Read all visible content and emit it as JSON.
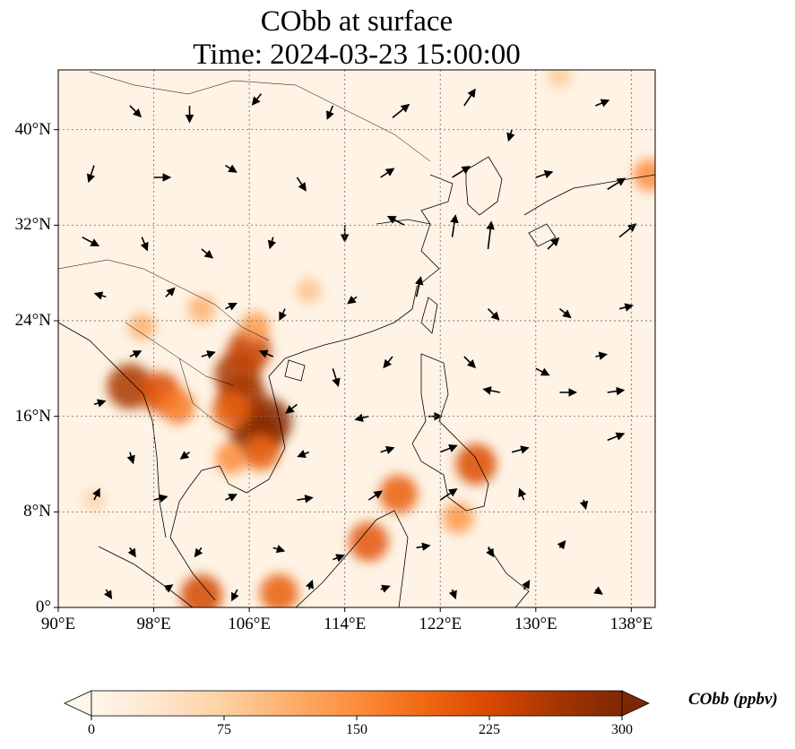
{
  "title": {
    "line1": "CObb at surface",
    "line2": "Time: 2024-03-23 15:00:00"
  },
  "map": {
    "lon_range": [
      90,
      140
    ],
    "lat_range": [
      0,
      45
    ],
    "x_ticks": [
      {
        "lon": 90,
        "label": "90°E"
      },
      {
        "lon": 98,
        "label": "98°E"
      },
      {
        "lon": 106,
        "label": "106°E"
      },
      {
        "lon": 114,
        "label": "114°E"
      },
      {
        "lon": 122,
        "label": "122°E"
      },
      {
        "lon": 130,
        "label": "130°E"
      },
      {
        "lon": 138,
        "label": "138°E"
      }
    ],
    "y_ticks": [
      {
        "lat": 0,
        "label": "0°"
      },
      {
        "lat": 8,
        "label": "8°N"
      },
      {
        "lat": 16,
        "label": "16°N"
      },
      {
        "lat": 24,
        "label": "24°N"
      },
      {
        "lat": 32,
        "label": "32°N"
      },
      {
        "lat": 40,
        "label": "40°N"
      }
    ],
    "gridlines": true,
    "background_color": "#fef3e4",
    "hotspots": [
      {
        "lon": 106.5,
        "lat": 14.5,
        "value": 300
      },
      {
        "lon": 107.5,
        "lat": 15.5,
        "value": 290
      },
      {
        "lon": 105.5,
        "lat": 17.5,
        "value": 270
      },
      {
        "lon": 105.0,
        "lat": 19.5,
        "value": 260
      },
      {
        "lon": 106.0,
        "lat": 21.5,
        "value": 240
      },
      {
        "lon": 96.0,
        "lat": 18.5,
        "value": 260
      },
      {
        "lon": 98.5,
        "lat": 18.0,
        "value": 220
      },
      {
        "lon": 100.0,
        "lat": 16.8,
        "value": 170
      },
      {
        "lon": 104.5,
        "lat": 16.5,
        "value": 200
      },
      {
        "lon": 107.0,
        "lat": 13.0,
        "value": 190
      },
      {
        "lon": 104.5,
        "lat": 12.5,
        "value": 150
      },
      {
        "lon": 125.0,
        "lat": 12.0,
        "value": 220
      },
      {
        "lon": 118.5,
        "lat": 9.5,
        "value": 200
      },
      {
        "lon": 116.0,
        "lat": 5.5,
        "value": 210
      },
      {
        "lon": 102.0,
        "lat": 1.0,
        "value": 230
      },
      {
        "lon": 108.5,
        "lat": 1.2,
        "value": 200
      },
      {
        "lon": 106.5,
        "lat": 23.5,
        "value": 130
      },
      {
        "lon": 102.0,
        "lat": 25.0,
        "value": 110
      },
      {
        "lon": 111.0,
        "lat": 26.5,
        "value": 90
      },
      {
        "lon": 97.0,
        "lat": 23.5,
        "value": 110
      },
      {
        "lon": 93.0,
        "lat": 9.0,
        "value": 70
      },
      {
        "lon": 123.5,
        "lat": 7.5,
        "value": 140
      },
      {
        "lon": 139.5,
        "lat": 36.2,
        "value": 150
      },
      {
        "lon": 132.0,
        "lat": 44.5,
        "value": 80
      }
    ],
    "wind_vectors": [
      {
        "lon": 96,
        "lat": 42,
        "u": 1,
        "v": -1
      },
      {
        "lon": 101,
        "lat": 42,
        "u": 0,
        "v": -1.5
      },
      {
        "lon": 107,
        "lat": 43,
        "u": -0.8,
        "v": -1
      },
      {
        "lon": 113,
        "lat": 42,
        "u": -0.5,
        "v": -1.2
      },
      {
        "lon": 118,
        "lat": 41,
        "u": 1.5,
        "v": 1.2
      },
      {
        "lon": 124,
        "lat": 42,
        "u": 1.0,
        "v": 1.5
      },
      {
        "lon": 128,
        "lat": 40,
        "u": -0.3,
        "v": -1.0
      },
      {
        "lon": 135,
        "lat": 42,
        "u": 1.2,
        "v": 0.5
      },
      {
        "lon": 93,
        "lat": 37,
        "u": -0.5,
        "v": -1.5
      },
      {
        "lon": 98,
        "lat": 36,
        "u": 1.5,
        "v": 0
      },
      {
        "lon": 104,
        "lat": 37,
        "u": 1.0,
        "v": -0.6
      },
      {
        "lon": 110,
        "lat": 36,
        "u": 0.8,
        "v": -1.2
      },
      {
        "lon": 117,
        "lat": 36,
        "u": 1.2,
        "v": 0.8
      },
      {
        "lon": 123,
        "lat": 36,
        "u": 1.6,
        "v": 1.0
      },
      {
        "lon": 130,
        "lat": 36,
        "u": 1.5,
        "v": 0.5
      },
      {
        "lon": 136,
        "lat": 35,
        "u": 1.6,
        "v": 1.0
      },
      {
        "lon": 92,
        "lat": 31,
        "u": 1.5,
        "v": -0.8
      },
      {
        "lon": 97,
        "lat": 31,
        "u": 0.5,
        "v": -1.2
      },
      {
        "lon": 102,
        "lat": 30,
        "u": 1.0,
        "v": -0.8
      },
      {
        "lon": 108,
        "lat": 31,
        "u": -0.3,
        "v": -1.0
      },
      {
        "lon": 114,
        "lat": 32,
        "u": 0,
        "v": -1.5
      },
      {
        "lon": 119,
        "lat": 32,
        "u": -1.5,
        "v": 0.8
      },
      {
        "lon": 123,
        "lat": 31,
        "u": 0.3,
        "v": 2.0
      },
      {
        "lon": 126,
        "lat": 30,
        "u": 0.3,
        "v": 2.5
      },
      {
        "lon": 131,
        "lat": 30,
        "u": 1.0,
        "v": 1.0
      },
      {
        "lon": 137,
        "lat": 31,
        "u": 1.5,
        "v": 1.2
      },
      {
        "lon": 94,
        "lat": 26,
        "u": -1.0,
        "v": 0.3
      },
      {
        "lon": 99,
        "lat": 26,
        "u": 0.8,
        "v": 0.8
      },
      {
        "lon": 104,
        "lat": 25,
        "u": 1.0,
        "v": 0.5
      },
      {
        "lon": 109,
        "lat": 25,
        "u": -0.5,
        "v": -1.0
      },
      {
        "lon": 115,
        "lat": 26,
        "u": -0.8,
        "v": -0.6
      },
      {
        "lon": 120,
        "lat": 26,
        "u": 0.4,
        "v": 1.8
      },
      {
        "lon": 126,
        "lat": 25,
        "u": 1.0,
        "v": -1.0
      },
      {
        "lon": 132,
        "lat": 25,
        "u": 1.0,
        "v": -0.8
      },
      {
        "lon": 137,
        "lat": 25,
        "u": 1.2,
        "v": 0.3
      },
      {
        "lon": 96,
        "lat": 21,
        "u": 1.0,
        "v": 0.5
      },
      {
        "lon": 102,
        "lat": 21,
        "u": 1.2,
        "v": 0.4
      },
      {
        "lon": 108,
        "lat": 21,
        "u": -1.2,
        "v": 0.5
      },
      {
        "lon": 113,
        "lat": 20,
        "u": 0.5,
        "v": -1.6
      },
      {
        "lon": 118,
        "lat": 21,
        "u": -0.8,
        "v": -1.0
      },
      {
        "lon": 124,
        "lat": 21,
        "u": 1.0,
        "v": -1.0
      },
      {
        "lon": 130,
        "lat": 20,
        "u": 1.2,
        "v": -0.6
      },
      {
        "lon": 135,
        "lat": 21,
        "u": 1.0,
        "v": 0.2
      },
      {
        "lon": 93,
        "lat": 17,
        "u": 1.0,
        "v": 0.3
      },
      {
        "lon": 110,
        "lat": 17,
        "u": -1.0,
        "v": -0.8
      },
      {
        "lon": 116,
        "lat": 16,
        "u": -1.2,
        "v": -0.3
      },
      {
        "lon": 121,
        "lat": 16,
        "u": 1.2,
        "v": 0
      },
      {
        "lon": 127,
        "lat": 18,
        "u": -1.5,
        "v": 0.3
      },
      {
        "lon": 132,
        "lat": 18,
        "u": 1.5,
        "v": 0
      },
      {
        "lon": 136,
        "lat": 18,
        "u": 1.5,
        "v": 0.2
      },
      {
        "lon": 96,
        "lat": 13,
        "u": 0.3,
        "v": -1.0
      },
      {
        "lon": 101,
        "lat": 13,
        "u": -0.8,
        "v": -0.6
      },
      {
        "lon": 111,
        "lat": 13,
        "u": -1.0,
        "v": -0.4
      },
      {
        "lon": 117,
        "lat": 13,
        "u": 1.2,
        "v": 0.4
      },
      {
        "lon": 122,
        "lat": 13,
        "u": 1.5,
        "v": 0.6
      },
      {
        "lon": 128,
        "lat": 13,
        "u": 1.5,
        "v": 0.4
      },
      {
        "lon": 136,
        "lat": 14,
        "u": 1.5,
        "v": 0.6
      },
      {
        "lon": 93,
        "lat": 9,
        "u": 0.5,
        "v": 1.0
      },
      {
        "lon": 98,
        "lat": 9,
        "u": 1.2,
        "v": 0.3
      },
      {
        "lon": 104,
        "lat": 9,
        "u": 1.0,
        "v": 0.5
      },
      {
        "lon": 110,
        "lat": 9,
        "u": 1.4,
        "v": 0.2
      },
      {
        "lon": 116,
        "lat": 9,
        "u": 1.2,
        "v": 0.8
      },
      {
        "lon": 122,
        "lat": 9,
        "u": 1.5,
        "v": 1.0
      },
      {
        "lon": 129,
        "lat": 9,
        "u": -0.4,
        "v": 1.0
      },
      {
        "lon": 134,
        "lat": 9,
        "u": 0.2,
        "v": -0.8
      },
      {
        "lon": 96,
        "lat": 5,
        "u": 0.5,
        "v": -0.8
      },
      {
        "lon": 102,
        "lat": 5,
        "u": -0.6,
        "v": -0.8
      },
      {
        "lon": 108,
        "lat": 5,
        "u": 1.0,
        "v": -0.3
      },
      {
        "lon": 113,
        "lat": 4,
        "u": 1.0,
        "v": 0.4
      },
      {
        "lon": 120,
        "lat": 5,
        "u": 1.2,
        "v": 0.2
      },
      {
        "lon": 126,
        "lat": 5,
        "u": 0.5,
        "v": -0.8
      },
      {
        "lon": 132,
        "lat": 5,
        "u": 0.5,
        "v": 0.6
      },
      {
        "lon": 94,
        "lat": 1.5,
        "u": 0.5,
        "v": -0.8
      },
      {
        "lon": 99,
        "lat": 1.5,
        "u": 0.6,
        "v": 0.4
      },
      {
        "lon": 105,
        "lat": 1.5,
        "u": -0.5,
        "v": -1.0
      },
      {
        "lon": 111,
        "lat": 1.5,
        "u": 0.3,
        "v": 0.8
      },
      {
        "lon": 117,
        "lat": 1.5,
        "u": 0.8,
        "v": 0.3
      },
      {
        "lon": 123,
        "lat": 1.5,
        "u": 0.3,
        "v": -0.8
      },
      {
        "lon": 129,
        "lat": 1.5,
        "u": 0.5,
        "v": 0.8
      },
      {
        "lon": 135,
        "lat": 1.5,
        "u": 0.6,
        "v": -0.4
      }
    ]
  },
  "colorbar": {
    "label": "CObb (ppbv)",
    "min": 0,
    "max": 300,
    "extend": "both",
    "ticks": [
      {
        "value": 0,
        "label": "0"
      },
      {
        "value": 75,
        "label": "75"
      },
      {
        "value": 150,
        "label": "150"
      },
      {
        "value": 225,
        "label": "225"
      },
      {
        "value": 300,
        "label": "300"
      }
    ],
    "colormap": [
      "#fff5eb",
      "#fee6ce",
      "#fdd0a2",
      "#fdae6b",
      "#fd8d3c",
      "#f16913",
      "#d94801",
      "#a63603",
      "#7f2704"
    ]
  }
}
